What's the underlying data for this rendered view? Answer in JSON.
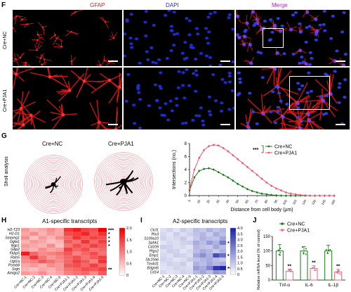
{
  "panel_f": {
    "label": "F",
    "columns": [
      "GFAP",
      "DAPI",
      "Merge"
    ],
    "column_colors": [
      "#e02020",
      "#2030d0",
      "#c020c0"
    ],
    "rows": [
      "Cre+NC",
      "Cre+PJA1"
    ]
  },
  "panel_g": {
    "label": "G",
    "row_label": "Sholl analysis",
    "titles": [
      "Cre+NC",
      "Cre+PJA1"
    ],
    "chart_data": {
      "type": "line",
      "xlabel": "Distance from cell body (μm)",
      "ylabel": "Intersections (no.)",
      "ylim": [
        0,
        8
      ],
      "yticks": [
        "0",
        "2",
        "4",
        "6",
        "8"
      ],
      "xticks": [
        "0",
        "10",
        "20",
        "30",
        "40",
        "50",
        "60",
        "70",
        "80",
        "90",
        "100",
        "110",
        "120",
        "130",
        "140",
        "150"
      ],
      "legend": "top-right",
      "significance": "***",
      "series": [
        {
          "name": "Cre+NC",
          "color": "#1a7a1a",
          "x": [
            0,
            5,
            10,
            15,
            20,
            25,
            30,
            35,
            40,
            45,
            50,
            55,
            60,
            65,
            70,
            75,
            80,
            85,
            90,
            95,
            100,
            105,
            110,
            115,
            120,
            125,
            130,
            135,
            140,
            145,
            150
          ],
          "y": [
            0.8,
            2.8,
            3.8,
            4.1,
            4.2,
            4.0,
            3.6,
            3.2,
            2.8,
            2.3,
            1.8,
            1.4,
            1.0,
            0.7,
            0.5,
            0.3,
            0.2,
            0.1,
            0.05,
            0,
            0,
            0,
            0,
            0,
            0,
            0,
            0,
            0,
            0,
            0,
            0
          ]
        },
        {
          "name": "Cre+PJA1",
          "color": "#ee5570",
          "x": [
            0,
            5,
            10,
            15,
            20,
            25,
            30,
            35,
            40,
            45,
            50,
            55,
            60,
            65,
            70,
            75,
            80,
            85,
            90,
            95,
            100,
            105,
            110,
            115,
            120,
            125,
            130,
            135,
            140,
            145,
            150
          ],
          "y": [
            1.0,
            4.0,
            5.8,
            7.0,
            7.6,
            7.8,
            7.7,
            7.3,
            6.8,
            6.2,
            5.6,
            5.0,
            4.4,
            3.8,
            3.2,
            2.6,
            2.0,
            1.5,
            1.1,
            0.8,
            0.5,
            0.3,
            0.2,
            0.1,
            0.05,
            0,
            0,
            0,
            0,
            0,
            0
          ]
        }
      ]
    }
  },
  "panel_h": {
    "label": "H",
    "title": "A1-specific transcripts",
    "genes": [
      "H2-T23",
      "H2-D1",
      "Serping1",
      "Ggta1",
      "Iligp1",
      "Gbp2",
      "Fkbp5",
      "Fbln5",
      "Ugt1a",
      "Psmb8",
      "Srgn",
      "Amigo2"
    ],
    "samples": [
      "Cre+NC-1",
      "Cre+NC-2",
      "Cre+NC-3",
      "Cre+NC-4",
      "Cre+NC-5",
      "Cre+PJA1-1",
      "Cre+PJA1-2",
      "Cre+PJA1-3",
      "Cre+PJA1-4",
      "Cre+PJA1-5"
    ],
    "sig": [
      "***",
      "*",
      "*",
      "*",
      "*",
      "",
      "",
      "",
      "",
      "",
      "**",
      ""
    ],
    "colorbar": {
      "ticks": [
        "2.0",
        "1.5",
        "1.0",
        "0.5",
        "0"
      ],
      "low": "#ffffff",
      "high": "#ee0000"
    },
    "values": [
      [
        0.8,
        0.6,
        0.7,
        0.9,
        0.7,
        1.6,
        1.8,
        1.5,
        1.4,
        2.0
      ],
      [
        0.7,
        0.9,
        0.6,
        0.8,
        0.7,
        1.4,
        1.5,
        1.7,
        1.3,
        1.6
      ],
      [
        0.9,
        0.5,
        0.8,
        0.6,
        0.9,
        1.2,
        1.6,
        1.3,
        1.5,
        1.4
      ],
      [
        0.6,
        0.8,
        0.7,
        0.5,
        0.6,
        1.3,
        1.1,
        1.6,
        1.2,
        1.5
      ],
      [
        0.8,
        0.7,
        0.6,
        0.9,
        0.5,
        1.1,
        1.4,
        1.2,
        1.5,
        1.3
      ],
      [
        0.7,
        0.6,
        0.9,
        0.7,
        0.8,
        1.5,
        1.2,
        1.4,
        1.1,
        1.2
      ],
      [
        1.8,
        1.2,
        0.9,
        1.0,
        1.1,
        1.3,
        1.0,
        1.2,
        1.4,
        1.1
      ],
      [
        1.0,
        1.6,
        1.1,
        0.8,
        1.0,
        1.2,
        1.4,
        1.1,
        1.3,
        1.5
      ],
      [
        0.9,
        1.0,
        1.3,
        1.1,
        0.9,
        1.2,
        1.5,
        1.3,
        1.0,
        1.6
      ],
      [
        0.7,
        0.8,
        0.6,
        0.9,
        0.8,
        1.3,
        1.4,
        1.2,
        1.5,
        1.2
      ],
      [
        0.6,
        0.5,
        0.7,
        0.6,
        0.8,
        1.1,
        1.2,
        1.4,
        1.3,
        1.5
      ],
      [
        0.8,
        0.7,
        0.9,
        0.6,
        0.7,
        1.0,
        1.1,
        1.2,
        0.9,
        1.3
      ]
    ]
  },
  "panel_i": {
    "label": "I",
    "title": "A2-specific transcripts",
    "genes": [
      "Clcf1",
      "Ptx3",
      "S100a10",
      "Sphk1",
      "Cd109",
      "Ptgs2",
      "Emp1",
      "Slc10a6",
      "Tm4sf1",
      "B3gnt5",
      "Cd14"
    ],
    "samples": [
      "Cre+NC-1",
      "Cre+NC-2",
      "Cre+NC-3",
      "Cre+NC-4",
      "Cre+NC-5",
      "Cre+PJA1-1",
      "Cre+PJA1-2",
      "Cre+PJA1-3",
      "Cre+PJA1-4",
      "Cre+PJA1-5"
    ],
    "sig": [
      "",
      "",
      "",
      "*",
      "",
      "",
      "*",
      "",
      "",
      "**",
      ""
    ],
    "colorbar": {
      "ticks": [
        "4.0",
        "3.5",
        "3.0",
        "2.5",
        "2.0",
        "1.5",
        "1.0",
        "0.5",
        "0"
      ],
      "low": "#ffffff",
      "high": "#1a22a8"
    },
    "values": [
      [
        0.6,
        0.8,
        0.5,
        0.9,
        0.7,
        1.2,
        1.0,
        1.4,
        1.1,
        1.3
      ],
      [
        0.7,
        0.5,
        0.9,
        0.6,
        0.8,
        1.1,
        1.3,
        0.9,
        1.5,
        1.2
      ],
      [
        0.8,
        0.6,
        0.7,
        1.0,
        0.6,
        1.0,
        1.4,
        1.2,
        1.1,
        1.6
      ],
      [
        0.5,
        0.7,
        0.6,
        0.8,
        0.9,
        1.5,
        1.2,
        1.8,
        1.4,
        2.4
      ],
      [
        0.9,
        0.8,
        0.6,
        0.7,
        0.5,
        1.3,
        1.1,
        1.0,
        1.6,
        1.2
      ],
      [
        0.6,
        0.9,
        0.8,
        0.5,
        0.7,
        1.2,
        1.5,
        1.3,
        1.0,
        1.4
      ],
      [
        0.7,
        0.6,
        0.9,
        0.8,
        0.6,
        1.6,
        2.0,
        1.4,
        3.2,
        2.6
      ],
      [
        0.8,
        0.7,
        0.5,
        0.6,
        0.9,
        1.1,
        1.3,
        1.5,
        1.2,
        1.0
      ],
      [
        0.6,
        0.8,
        0.7,
        0.9,
        0.5,
        1.4,
        1.2,
        1.6,
        1.3,
        1.5
      ],
      [
        0.5,
        0.6,
        0.8,
        0.7,
        0.6,
        1.8,
        1.5,
        2.2,
        3.6,
        3.9
      ],
      [
        0.7,
        0.5,
        0.6,
        0.8,
        0.7,
        1.3,
        1.6,
        1.2,
        1.9,
        1.7
      ]
    ]
  },
  "panel_j": {
    "label": "J",
    "chart_data": {
      "type": "bar",
      "categories": [
        "Tnf-α",
        "IL-6",
        "IL-1β"
      ],
      "ylabel": "Relative mRNA level (% of control)",
      "ylim": [
        0,
        150
      ],
      "yticks": [
        "0",
        "50",
        "100",
        "150"
      ],
      "legend": "top",
      "series": [
        {
          "name": "Cre+NC",
          "color": "#1a7a1a",
          "values": [
            100,
            100,
            100
          ],
          "err": [
            22,
            15,
            20
          ]
        },
        {
          "name": "Cre+PJA1",
          "color": "#ee6680",
          "values": [
            30,
            40,
            28
          ],
          "err": [
            8,
            10,
            9
          ]
        }
      ],
      "significance": [
        "**",
        "**",
        "**"
      ]
    }
  }
}
